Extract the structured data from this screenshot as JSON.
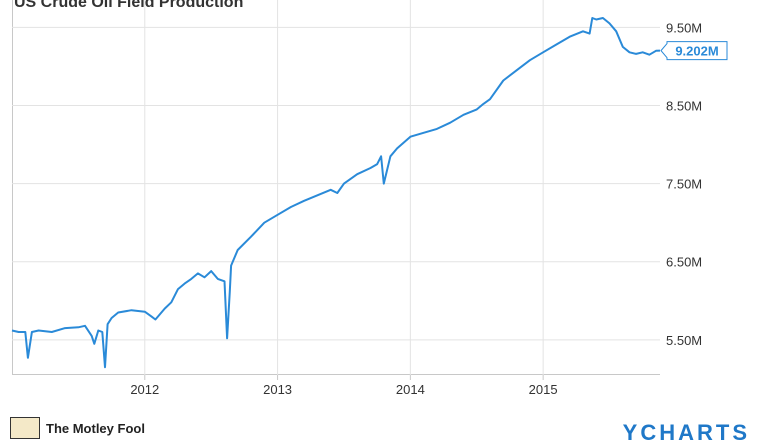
{
  "chart_data": {
    "type": "line",
    "title": "US Crude Oil Field Production",
    "xlabel": "",
    "ylabel": "",
    "x_ticks": [
      "2012",
      "2013",
      "2014",
      "2015"
    ],
    "y_ticks": [
      "5.50M",
      "6.50M",
      "7.50M",
      "8.50M",
      "9.50M"
    ],
    "ylim": [
      5.05,
      9.85
    ],
    "xlim": [
      2011.0,
      2015.88
    ],
    "last_value_label": "9.202M",
    "series": [
      {
        "name": "",
        "color": "#2a8ad8",
        "x": [
          2011.0,
          2011.05,
          2011.1,
          2011.12,
          2011.15,
          2011.2,
          2011.3,
          2011.4,
          2011.5,
          2011.55,
          2011.6,
          2011.62,
          2011.65,
          2011.68,
          2011.7,
          2011.72,
          2011.75,
          2011.8,
          2011.9,
          2012.0,
          2012.05,
          2012.08,
          2012.1,
          2012.15,
          2012.2,
          2012.25,
          2012.3,
          2012.35,
          2012.4,
          2012.45,
          2012.5,
          2012.55,
          2012.6,
          2012.62,
          2012.64,
          2012.65,
          2012.7,
          2012.8,
          2012.9,
          2013.0,
          2013.1,
          2013.2,
          2013.3,
          2013.4,
          2013.45,
          2013.5,
          2013.6,
          2013.7,
          2013.75,
          2013.78,
          2013.8,
          2013.85,
          2013.9,
          2014.0,
          2014.1,
          2014.2,
          2014.3,
          2014.4,
          2014.5,
          2014.55,
          2014.6,
          2014.7,
          2014.8,
          2014.9,
          2015.0,
          2015.1,
          2015.2,
          2015.3,
          2015.35,
          2015.37,
          2015.4,
          2015.45,
          2015.5,
          2015.55,
          2015.6,
          2015.65,
          2015.7,
          2015.75,
          2015.8,
          2015.85,
          2015.88
        ],
        "y": [
          5.62,
          5.6,
          5.6,
          5.27,
          5.6,
          5.62,
          5.6,
          5.65,
          5.66,
          5.68,
          5.55,
          5.45,
          5.62,
          5.6,
          5.15,
          5.7,
          5.78,
          5.85,
          5.88,
          5.86,
          5.8,
          5.76,
          5.8,
          5.9,
          5.98,
          6.15,
          6.22,
          6.28,
          6.35,
          6.3,
          6.38,
          6.28,
          6.25,
          5.52,
          6.12,
          6.45,
          6.65,
          6.82,
          7.0,
          7.1,
          7.2,
          7.28,
          7.35,
          7.42,
          7.38,
          7.5,
          7.62,
          7.7,
          7.75,
          7.85,
          7.5,
          7.85,
          7.95,
          8.1,
          8.15,
          8.2,
          8.28,
          8.38,
          8.45,
          8.52,
          8.58,
          8.82,
          8.95,
          9.08,
          9.18,
          9.28,
          9.38,
          9.45,
          9.42,
          9.62,
          9.6,
          9.62,
          9.55,
          9.45,
          9.25,
          9.18,
          9.16,
          9.18,
          9.15,
          9.2,
          9.202
        ]
      }
    ]
  },
  "footer": {
    "source_text": "The Motley Fool",
    "brand_text": "YCHARTS"
  }
}
